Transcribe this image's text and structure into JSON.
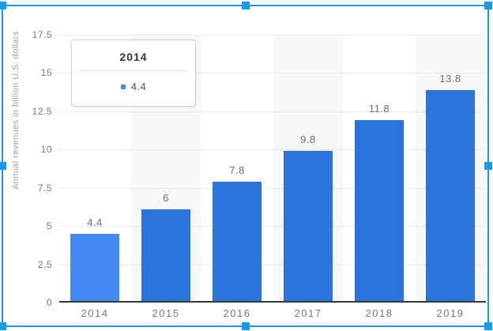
{
  "chart_data": {
    "type": "bar",
    "categories": [
      "2014",
      "2015",
      "2016",
      "2017",
      "2018",
      "2019"
    ],
    "values": [
      4.4,
      6,
      7.8,
      9.8,
      11.8,
      13.8
    ],
    "bar_labels": [
      "4.4",
      "6",
      "7.8",
      "9.8",
      "11.8",
      "13.8"
    ],
    "title": "",
    "xlabel": "",
    "ylabel": "Annual revenues in billion U.S. dollars",
    "ylim": [
      0,
      17.5
    ],
    "yticks": [
      0,
      2.5,
      5,
      7.5,
      10,
      12.5,
      15,
      17.5
    ],
    "ytick_labels": [
      "0",
      "2.5",
      "5",
      "7.5",
      "10",
      "12.5",
      "15",
      "17.5"
    ],
    "grid": "horizontal-dotted",
    "legend": "none",
    "highlighted_index": 0,
    "banded_categories": [
      "2015",
      "2017",
      "2019"
    ]
  },
  "tooltip": {
    "title": "2014",
    "value": "4.4"
  },
  "colors": {
    "bar": "#2b74db",
    "bar_highlight": "#4589f3",
    "plot_band": "#f7f8f8",
    "gridline": "#d3d9de",
    "axis_line": "#333b41",
    "selection": "#1899f2",
    "tooltip_marker": "#4589f3"
  }
}
